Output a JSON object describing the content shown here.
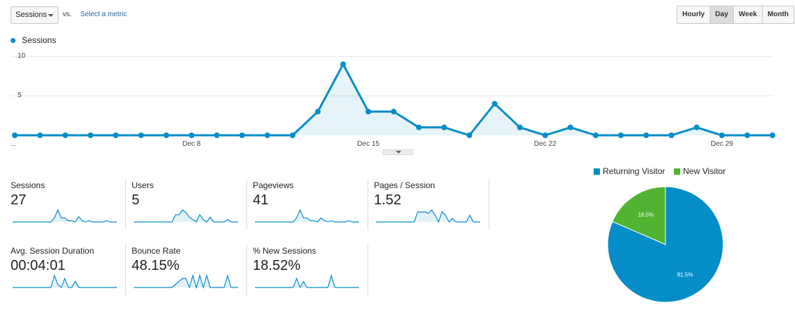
{
  "toolbar": {
    "metric_select": "Sessions",
    "vs_label": "vs.",
    "select_metric_link": "Select a metric",
    "granularity": [
      {
        "label": "Hourly",
        "active": false
      },
      {
        "label": "Day",
        "active": true
      },
      {
        "label": "Week",
        "active": false
      },
      {
        "label": "Month",
        "active": false
      }
    ]
  },
  "chart_data": [
    {
      "type": "area",
      "series": [
        {
          "name": "Sessions",
          "color": "#058dc7",
          "values": [
            0,
            0,
            0,
            0,
            0,
            0,
            0,
            0,
            0,
            0,
            0,
            0,
            3,
            9,
            3,
            3,
            1,
            1,
            0,
            4,
            1,
            0,
            1,
            0,
            0,
            0,
            0,
            1,
            0,
            0,
            0
          ]
        }
      ],
      "x_tick_labels": [
        "...",
        "Dec 8",
        "Dec 15",
        "Dec 22",
        "Dec 29"
      ],
      "x_tick_index": [
        0,
        7,
        14,
        21,
        28
      ],
      "y_tick_labels": [
        "10",
        "5"
      ],
      "ylim": [
        0,
        10
      ],
      "grid": true,
      "legend": "top-left"
    },
    {
      "type": "pie",
      "slices": [
        {
          "name": "Returning Visitor",
          "value": 81.5,
          "label": "81.5%",
          "color": "#058dc7"
        },
        {
          "name": "New Visitor",
          "value": 18.5,
          "label": "18.5%",
          "color": "#50b432"
        }
      ],
      "legend": "top"
    }
  ],
  "scorecards": [
    {
      "label": "Sessions",
      "value": "27",
      "spark": [
        0,
        0,
        0,
        0,
        0,
        0,
        0,
        0,
        0,
        0,
        0,
        0,
        3,
        9,
        3,
        3,
        1,
        1,
        0,
        4,
        1,
        0,
        1,
        0,
        0,
        0,
        0,
        1,
        0,
        0,
        0
      ]
    },
    {
      "label": "Users",
      "value": "5",
      "spark": [
        0,
        0,
        0,
        0,
        0,
        0,
        0,
        0,
        0,
        0,
        0,
        0,
        3,
        3,
        5,
        4,
        2,
        1,
        0,
        3,
        1,
        0,
        2,
        0,
        0,
        0,
        0,
        1,
        0,
        0,
        0
      ]
    },
    {
      "label": "Pageviews",
      "value": "41",
      "spark": [
        0,
        0,
        0,
        0,
        0,
        0,
        0,
        0,
        0,
        0,
        0,
        0,
        3,
        9,
        3,
        3,
        1,
        1,
        0,
        3,
        1,
        0,
        1,
        0,
        0,
        0,
        0,
        1,
        0,
        0,
        0
      ]
    },
    {
      "label": "Pages / Session",
      "value": "1.52",
      "spark": [
        0,
        0,
        0,
        0,
        0,
        0,
        0,
        0,
        0,
        0,
        0,
        0,
        3,
        2.8,
        3,
        2.5,
        3.5,
        2,
        0,
        3,
        2,
        0,
        1,
        0,
        0,
        0,
        0,
        2,
        0,
        0,
        0
      ]
    },
    {
      "label": "Avg. Session Duration",
      "value": "00:04:01",
      "spark": [
        0,
        0,
        0,
        0,
        0,
        0,
        0,
        0,
        0,
        0,
        0,
        0,
        4,
        1,
        0,
        3,
        0,
        0,
        2,
        0,
        0,
        0,
        0,
        0,
        0,
        0,
        0,
        0,
        0,
        0,
        0
      ]
    },
    {
      "label": "Bounce Rate",
      "value": "48.15%",
      "spark": [
        0,
        0,
        0,
        0,
        0,
        0,
        0,
        0,
        0,
        0,
        0,
        0,
        1,
        2,
        3,
        3,
        0,
        4,
        0,
        4,
        0,
        4,
        0,
        0,
        0,
        0,
        0,
        4,
        0,
        0,
        0
      ]
    },
    {
      "label": "% New Sessions",
      "value": "18.52%",
      "spark": [
        0,
        0,
        0,
        0,
        0,
        0,
        0,
        0,
        0,
        0,
        0,
        0,
        3,
        0,
        2,
        0,
        0,
        0,
        0,
        0,
        0,
        0,
        4,
        0,
        0,
        0,
        0,
        0,
        0,
        0,
        0
      ]
    }
  ]
}
